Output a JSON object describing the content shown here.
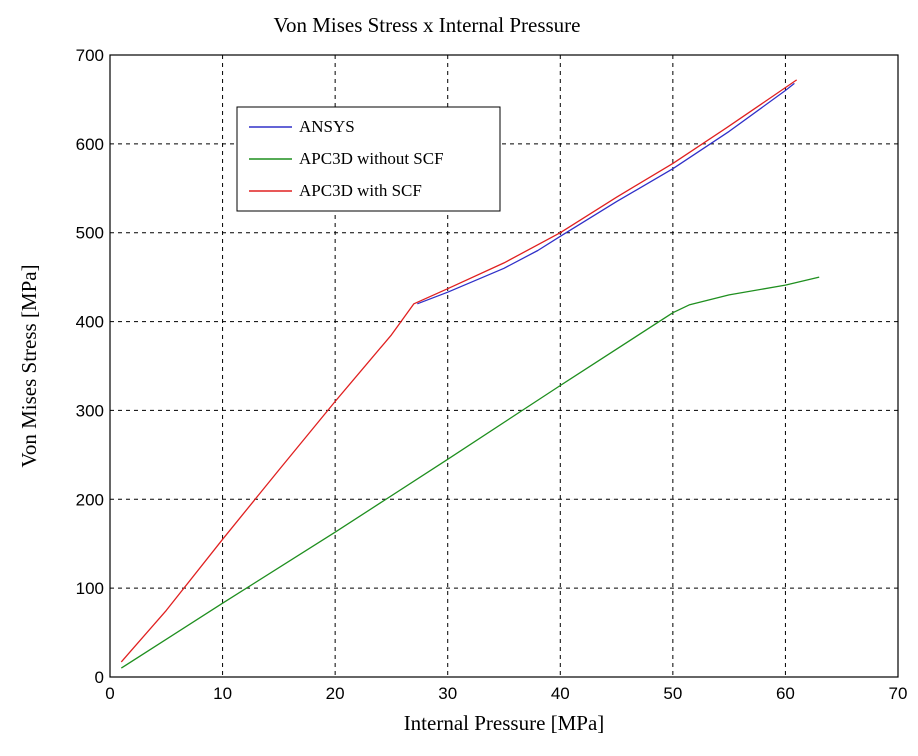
{
  "chart_data": {
    "type": "line",
    "title": "Von Mises Stress x Internal Pressure",
    "xlabel": "Internal Pressure [MPa]",
    "ylabel": "Von Mises Stress [MPa]",
    "xlim": [
      0,
      70
    ],
    "ylim": [
      0,
      700
    ],
    "xticks": [
      0,
      10,
      20,
      30,
      40,
      50,
      60,
      70
    ],
    "yticks": [
      0,
      100,
      200,
      300,
      400,
      500,
      600,
      700
    ],
    "grid": true,
    "legend_position": "upper-left",
    "series": [
      {
        "name": "ANSYS",
        "color": "#3030c8",
        "points": [
          [
            27.3,
            420
          ],
          [
            30,
            433
          ],
          [
            35,
            460
          ],
          [
            38,
            480
          ],
          [
            40,
            496
          ],
          [
            45,
            535
          ],
          [
            50,
            572
          ],
          [
            55,
            614
          ],
          [
            60,
            660
          ],
          [
            60.8,
            668
          ]
        ]
      },
      {
        "name": "APC3D without SCF",
        "color": "#1f8f1f",
        "points": [
          [
            1,
            10
          ],
          [
            10,
            83
          ],
          [
            20,
            163
          ],
          [
            30,
            245
          ],
          [
            40,
            328
          ],
          [
            50,
            410
          ],
          [
            51.5,
            419
          ],
          [
            55,
            430
          ],
          [
            60,
            441
          ],
          [
            63,
            450
          ]
        ]
      },
      {
        "name": "APC3D with SCF",
        "color": "#e02020",
        "points": [
          [
            1,
            17
          ],
          [
            5,
            75
          ],
          [
            10,
            155
          ],
          [
            15,
            233
          ],
          [
            20,
            310
          ],
          [
            25,
            385
          ],
          [
            27,
            420
          ],
          [
            30,
            437
          ],
          [
            35,
            466
          ],
          [
            40,
            500
          ],
          [
            45,
            540
          ],
          [
            50,
            578
          ],
          [
            55,
            620
          ],
          [
            61,
            672
          ]
        ]
      }
    ]
  }
}
